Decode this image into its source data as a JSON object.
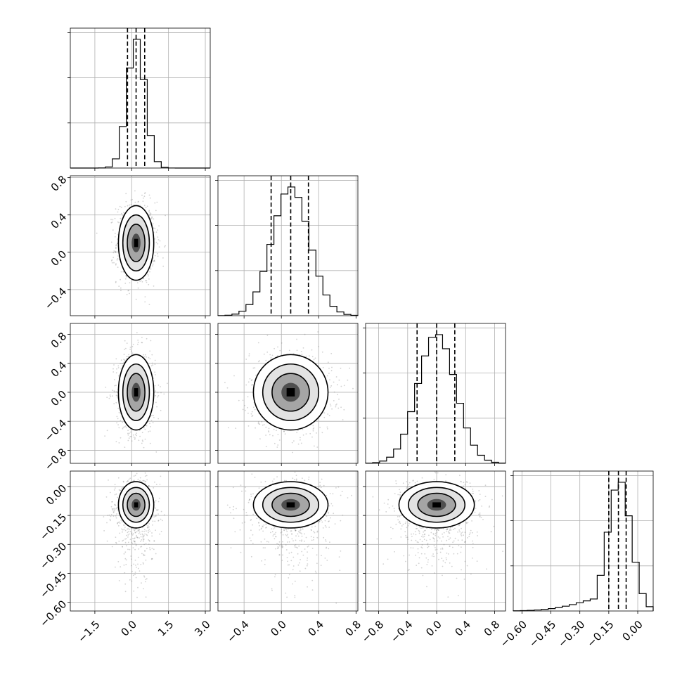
{
  "chart_data": {
    "type": "corner",
    "n_params": 4,
    "params": [
      {
        "range": [
          -2.5,
          3.2
        ],
        "ticks": [
          -1.5,
          0.0,
          1.5,
          3.0
        ],
        "tick_labels": [
          "−1.5",
          "0.0",
          "1.5",
          "3.0"
        ],
        "quantiles": [
          -0.17,
          0.18,
          0.53
        ],
        "mean": 0.18,
        "sd": 0.36,
        "hist_ticks": 3
      },
      {
        "range": [
          -0.68,
          0.82
        ],
        "ticks": [
          -0.4,
          0.0,
          0.4,
          0.8
        ],
        "tick_labels": [
          "−0.4",
          "0.0",
          "0.4",
          "0.8"
        ],
        "quantiles": [
          -0.11,
          0.1,
          0.29
        ],
        "mean": 0.1,
        "sd": 0.2,
        "hist_ticks": 3
      },
      {
        "range": [
          -0.98,
          0.95
        ],
        "ticks": [
          -0.8,
          -0.4,
          0.0,
          0.4,
          0.8
        ],
        "tick_labels": [
          "−0.8",
          "−0.4",
          "0.0",
          "0.4",
          "0.8"
        ],
        "quantiles": [
          -0.27,
          0.0,
          0.25
        ],
        "mean": 0.0,
        "sd": 0.26,
        "hist_ticks": 3
      },
      {
        "range": [
          -0.645,
          0.08
        ],
        "ticks": [
          -0.6,
          -0.45,
          -0.3,
          -0.15,
          0.0
        ],
        "tick_labels": [
          "−0.60",
          "−0.45",
          "−0.30",
          "−0.15",
          "0.00"
        ],
        "quantiles": [
          -0.15,
          -0.1,
          -0.06
        ],
        "mean": -0.095,
        "sd": 0.06,
        "hist_ticks": 3
      }
    ],
    "hist_bins": 20,
    "show_grid": true,
    "x_axis_row": "bottom",
    "y_axis_col": "left"
  }
}
